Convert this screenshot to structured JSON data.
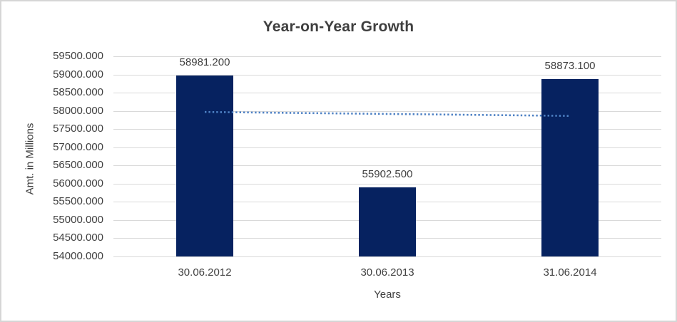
{
  "frame": {
    "background": "#FFFFFF",
    "border_color": "#D6D6D6"
  },
  "chart_data": {
    "type": "bar",
    "title": "Year-on-Year Growth",
    "xlabel": "Years",
    "ylabel": "Amt. in Millions",
    "categories": [
      "30.06.2012",
      "30.06.2013",
      "31.06.2014"
    ],
    "values": [
      58981.2,
      55902.5,
      58873.1
    ],
    "data_labels": [
      "58981.200",
      "55902.500",
      "58873.100"
    ],
    "ylim": [
      54000,
      59500
    ],
    "ytick_step": 500,
    "ytick_labels": [
      "59500.000",
      "59000.000",
      "58500.000",
      "58000.000",
      "57500.000",
      "57000.000",
      "56500.000",
      "56000.000",
      "55500.000",
      "55000.000",
      "54500.000",
      "54000.000"
    ],
    "grid": true,
    "legend": "none",
    "bar_color": "#062260",
    "gridline_color": "#D9D9D9",
    "text_color": "#404040",
    "trendline": {
      "style": "dotted",
      "color": "#4E81C4",
      "start_value": 57970,
      "end_value": 57862
    }
  }
}
